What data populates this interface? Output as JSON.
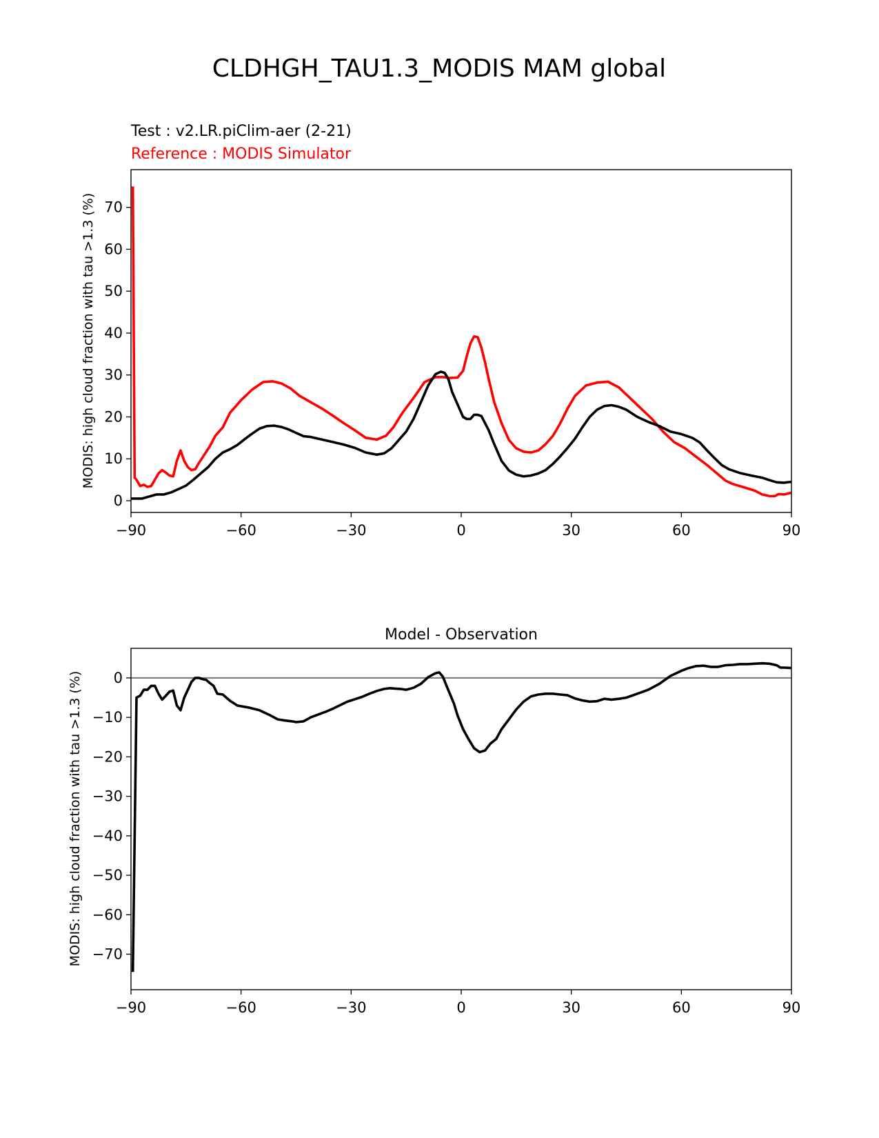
{
  "figure": {
    "title": "CLDHGH_TAU1.3_MODIS MAM global"
  },
  "chart_data": [
    {
      "type": "line",
      "test_label": "Test : v2.LR.piClim-aer (2-21)",
      "reference_label": "Reference : MODIS Simulator",
      "xlabel": "",
      "ylabel": "MODIS: high cloud fraction with tau >1.3 (%)",
      "xlim": [
        -90,
        90
      ],
      "ylim": [
        -2.8,
        79
      ],
      "xticks": [
        -90,
        -60,
        -30,
        0,
        30,
        60,
        90
      ],
      "xtick_labels": [
        "−90",
        "−60",
        "−30",
        "0",
        "30",
        "60",
        "90"
      ],
      "yticks": [
        0,
        10,
        20,
        30,
        40,
        50,
        60,
        70
      ],
      "ytick_labels": [
        "0",
        "10",
        "20",
        "30",
        "40",
        "50",
        "60",
        "70"
      ],
      "grid": false,
      "series": [
        {
          "role": "reference",
          "color": "#ff0000",
          "x": [
            -89.5,
            -89,
            -88.5,
            -87.5,
            -86.5,
            -85.5,
            -84.5,
            -83.5,
            -82.5,
            -81.5,
            -80.5,
            -79.5,
            -78.5,
            -77.5,
            -76.5,
            -75.5,
            -74.5,
            -73.5,
            -72.5,
            -71.5,
            -70,
            -68.5,
            -67,
            -65,
            -63,
            -60,
            -57,
            -54,
            -51.5,
            -49,
            -46.5,
            -44,
            -41,
            -38,
            -35,
            -32,
            -29,
            -26,
            -23,
            -20.5,
            -18.5,
            -16,
            -13,
            -10,
            -7,
            -5,
            -3,
            -1,
            0.5,
            1.5,
            2.5,
            3.5,
            4.5,
            5.5,
            6.5,
            7.5,
            9,
            11,
            13,
            15,
            17,
            19,
            21,
            23,
            25,
            27,
            29,
            31,
            34,
            37,
            40,
            43,
            46,
            49,
            52,
            55,
            58,
            61,
            64,
            67,
            70,
            72,
            74,
            77,
            80,
            82,
            84,
            85.5,
            86.5,
            88,
            90
          ],
          "y": [
            75,
            5.5,
            5,
            3.5,
            3.8,
            3.3,
            3.5,
            5,
            6.5,
            7.3,
            6.7,
            6,
            5.8,
            9.5,
            12,
            9.5,
            8,
            7.3,
            7.5,
            9,
            11,
            13,
            15.5,
            17.5,
            21,
            24,
            26.5,
            28.3,
            28.5,
            28,
            26.8,
            25,
            23.5,
            22,
            20.3,
            18.5,
            16.8,
            15,
            14.6,
            15.5,
            17.5,
            21,
            24.5,
            28.3,
            29.5,
            29.5,
            29.3,
            29.4,
            31,
            34.5,
            37.5,
            39.2,
            39,
            36.5,
            33,
            29,
            23.5,
            18.5,
            14.5,
            12.5,
            11.7,
            11.5,
            12,
            13.5,
            15.5,
            18.5,
            22,
            25,
            27.5,
            28.2,
            28.4,
            27,
            24.5,
            22,
            19.5,
            16.5,
            14,
            12.5,
            10.5,
            8.5,
            6.3,
            4.8,
            4,
            3.2,
            2.4,
            1.5,
            1.1,
            1.1,
            1.6,
            1.5,
            1.9
          ]
        },
        {
          "role": "test",
          "color": "#000000",
          "x": [
            -90,
            -87,
            -85,
            -83,
            -81,
            -79,
            -77,
            -75,
            -73,
            -71,
            -69,
            -67,
            -65,
            -63,
            -61,
            -59,
            -57,
            -55,
            -53,
            -51,
            -49,
            -47,
            -45,
            -43,
            -41,
            -38,
            -35,
            -32,
            -29,
            -26,
            -23,
            -21,
            -19,
            -17,
            -15,
            -13,
            -11,
            -9,
            -7,
            -5.5,
            -4.5,
            -3.5,
            -2.5,
            -1.5,
            -0.5,
            0.5,
            1.5,
            2.5,
            3.5,
            4.5,
            5.5,
            6.5,
            7.5,
            9,
            11,
            13,
            15,
            17,
            19,
            21,
            23,
            25,
            27,
            29,
            31,
            33,
            35,
            37,
            39,
            41,
            43,
            45,
            48,
            51,
            54,
            57,
            60,
            63,
            65,
            67,
            69,
            71,
            73,
            76,
            79,
            82,
            84,
            86,
            88,
            90
          ],
          "y": [
            0.5,
            0.5,
            1,
            1.5,
            1.5,
            2,
            2.8,
            3.6,
            5,
            6.5,
            8,
            10,
            11.5,
            12.3,
            13.3,
            14.7,
            16,
            17.2,
            17.8,
            17.9,
            17.6,
            17,
            16.2,
            15.4,
            15.2,
            14.6,
            14,
            13.4,
            12.6,
            11.5,
            11,
            11.3,
            12.5,
            14.5,
            16.5,
            19.5,
            23.5,
            27.5,
            30.2,
            30.8,
            30.5,
            29,
            26,
            24,
            22,
            20,
            19.5,
            19.5,
            20.5,
            20.5,
            20.2,
            18.5,
            16.8,
            13.5,
            9.5,
            7.2,
            6.2,
            5.8,
            6,
            6.5,
            7.3,
            8.8,
            10.6,
            12.6,
            14.8,
            17.5,
            20,
            21.7,
            22.6,
            22.8,
            22.4,
            21.7,
            20,
            18.8,
            17.8,
            16.5,
            15.9,
            15,
            13.9,
            12,
            10.2,
            8.5,
            7.5,
            6.6,
            6,
            5.5,
            4.9,
            4.4,
            4.3,
            4.5
          ]
        }
      ]
    },
    {
      "type": "line",
      "title": "Model - Observation",
      "xlabel": "",
      "ylabel": "MODIS: high cloud fraction with tau >1.3 (%)",
      "xlim": [
        -90,
        90
      ],
      "ylim": [
        -79,
        7.5
      ],
      "xticks": [
        -90,
        -60,
        -30,
        0,
        30,
        60,
        90
      ],
      "xtick_labels": [
        "−90",
        "−60",
        "−30",
        "0",
        "30",
        "60",
        "90"
      ],
      "yticks": [
        0,
        -10,
        -20,
        -30,
        -40,
        -50,
        -60,
        -70
      ],
      "ytick_labels": [
        "0",
        "−10",
        "−20",
        "−30",
        "−40",
        "−50",
        "−60",
        "−70"
      ],
      "grid": false,
      "zero_line_color": "#808080",
      "series": [
        {
          "role": "difference",
          "color": "#000000",
          "x": [
            -89.5,
            -88.5,
            -87.5,
            -86.5,
            -85.5,
            -84.5,
            -83.5,
            -82.5,
            -81.5,
            -80.5,
            -79.5,
            -78.5,
            -77.5,
            -76.5,
            -75.5,
            -74.5,
            -73.5,
            -72.5,
            -71.5,
            -70.5,
            -69.5,
            -68.5,
            -67.5,
            -66.5,
            -65,
            -63,
            -61,
            -58,
            -55,
            -52,
            -50,
            -48,
            -46,
            -45,
            -43,
            -41,
            -39,
            -37,
            -35,
            -33,
            -31,
            -29,
            -27,
            -25,
            -23,
            -21,
            -19.5,
            -18,
            -16.5,
            -15,
            -13,
            -11,
            -9,
            -7,
            -6,
            -5,
            -4,
            -3,
            -2,
            -1,
            0.5,
            2,
            3.5,
            5,
            6.5,
            8,
            9.5,
            11,
            13,
            15,
            17,
            19,
            21,
            23,
            25,
            27,
            29,
            31,
            33,
            35,
            37,
            39,
            41,
            43,
            45,
            48,
            51,
            54,
            57,
            60,
            62,
            64,
            66,
            68,
            70,
            72,
            74,
            76,
            78,
            80,
            82,
            84,
            86,
            87,
            88,
            90
          ],
          "y": [
            -74.5,
            -5,
            -4.5,
            -3,
            -3,
            -2,
            -2,
            -4,
            -5.5,
            -4.5,
            -3.5,
            -3.2,
            -7,
            -8.2,
            -5,
            -3,
            -1,
            0,
            0,
            -0.3,
            -0.5,
            -1.3,
            -2,
            -4,
            -4.2,
            -5.8,
            -7,
            -7.5,
            -8.2,
            -9.5,
            -10.5,
            -10.8,
            -11,
            -11.2,
            -11,
            -10,
            -9.3,
            -8.6,
            -7.8,
            -6.9,
            -6,
            -5.4,
            -4.8,
            -4,
            -3.3,
            -2.8,
            -2.6,
            -2.7,
            -2.8,
            -3,
            -2.5,
            -1.5,
            0.2,
            1.2,
            1.4,
            0.3,
            -2,
            -4.2,
            -6.5,
            -9.5,
            -13,
            -15.5,
            -17.8,
            -18.8,
            -18.4,
            -16.6,
            -15.5,
            -13,
            -10.5,
            -8,
            -6,
            -4.7,
            -4.2,
            -4,
            -4,
            -4.2,
            -4.4,
            -5.2,
            -5.7,
            -6,
            -5.9,
            -5.3,
            -5.5,
            -5.3,
            -5,
            -4,
            -3,
            -1.5,
            0.5,
            1.8,
            2.5,
            3,
            3.1,
            2.8,
            2.8,
            3.2,
            3.3,
            3.5,
            3.5,
            3.6,
            3.7,
            3.6,
            3.2,
            2.6,
            2.6,
            2.5
          ]
        }
      ]
    }
  ]
}
